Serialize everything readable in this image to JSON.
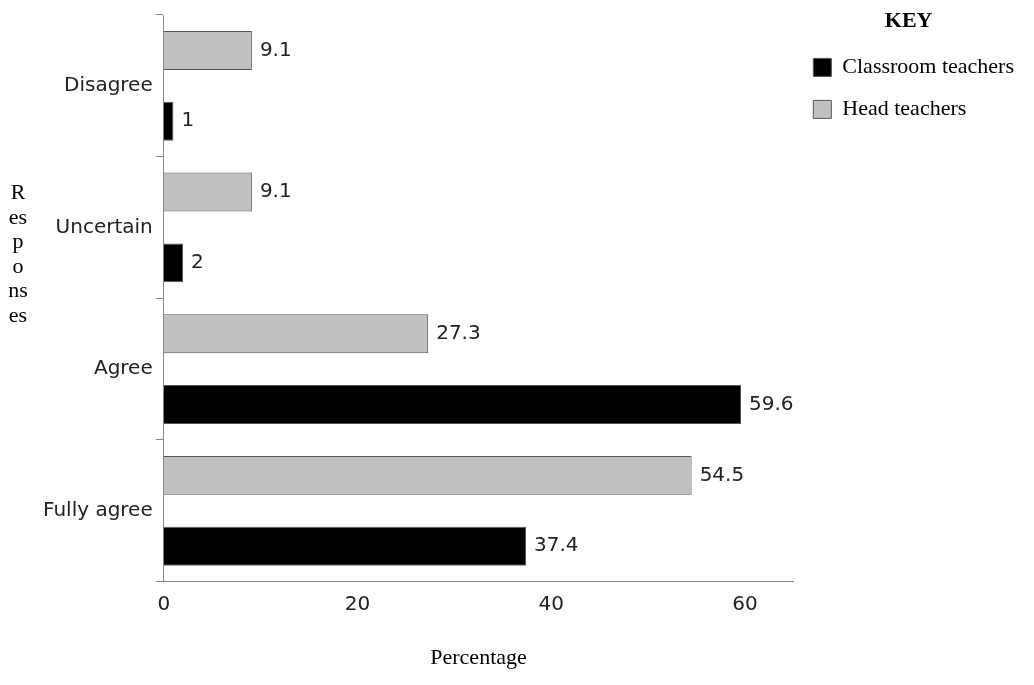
{
  "chart_data": {
    "type": "bar",
    "orientation": "horizontal",
    "xlabel": "Percentage",
    "ylabel": "Responses",
    "legend_title": "KEY",
    "legend": "top right",
    "data_labels": true,
    "grid": false,
    "categories": [
      "Disagree",
      "Uncertain",
      "Agree",
      "Fully agree"
    ],
    "series": [
      {
        "name": "Classroom teachers",
        "color": "#000000",
        "values": [
          1,
          2,
          59.6,
          37.4
        ]
      },
      {
        "name": "Head teachers",
        "color": "#c0c0c0",
        "values": [
          9.1,
          9.1,
          27.3,
          54.5
        ]
      }
    ],
    "xlim": [
      0,
      65
    ],
    "xticks": [
      0,
      20,
      40,
      60
    ]
  }
}
